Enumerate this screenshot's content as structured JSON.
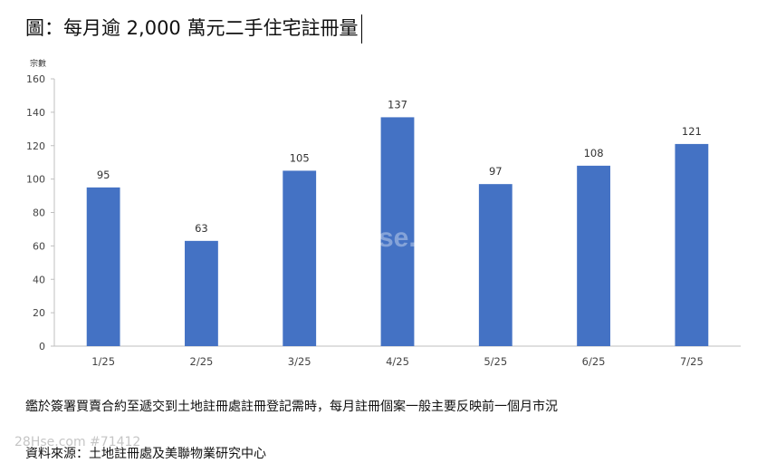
{
  "title": "圖：每月逾 2,000 萬元二手住宅註冊量",
  "note": "鑑於簽署買賣合約至遞交到土地註冊處註冊登記需時，每月註冊個案一般主要反映前一個月市況",
  "source": "資料來源：土地註冊處及美聯物業研究中心",
  "watermark": "28Hse.com #71412",
  "watermark_center": "se.co",
  "chart_data": {
    "type": "bar",
    "categories": [
      "1/25",
      "2/25",
      "3/25",
      "4/25",
      "5/25",
      "6/25",
      "7/25"
    ],
    "values": [
      95,
      63,
      105,
      137,
      97,
      108,
      121
    ],
    "ylabel": "宗數",
    "ylim": [
      0,
      160
    ],
    "yticks": [
      0,
      20,
      40,
      60,
      80,
      100,
      120,
      140,
      160
    ],
    "grid": false,
    "bar_color": "#4472C4"
  }
}
